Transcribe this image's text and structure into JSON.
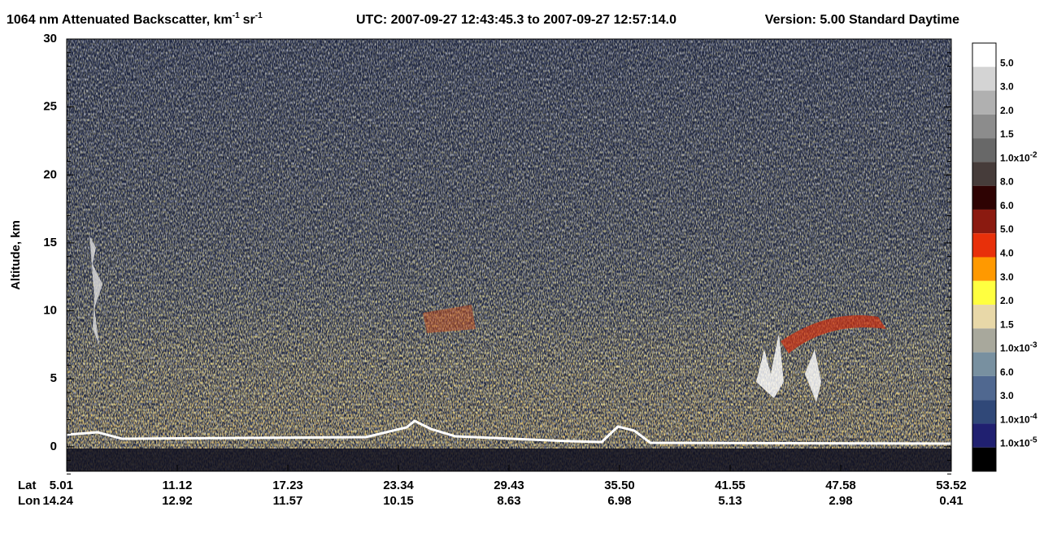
{
  "chart_data": {
    "type": "image",
    "title": {
      "main": "1064 nm Attenuated Backscatter, km",
      "exp1": "-1",
      "unit2": "sr",
      "exp2": "-1",
      "utc": "UTC:  2007-09-27 12:43:45.3  to  2007-09-27 12:57:14.0",
      "version": "Version: 5.00  Standard  Daytime"
    },
    "y_label": "Altitude, km",
    "ylim": [
      -1.8,
      30
    ],
    "yticks": [
      0,
      5,
      10,
      15,
      20,
      25,
      30
    ],
    "x_rows": [
      "Lat",
      "Lon"
    ],
    "lat": [
      "5.01",
      "11.12",
      "17.23",
      "23.34",
      "29.43",
      "35.50",
      "41.55",
      "47.58",
      "53.52"
    ],
    "lon": [
      "14.24",
      "12.92",
      "11.57",
      "10.15",
      "8.63",
      "6.98",
      "5.13",
      "2.98",
      "0.41"
    ],
    "colorbar": {
      "colors": [
        "#ffffff",
        "#d4d4d4",
        "#b0b0b0",
        "#8c8c8c",
        "#686868",
        "#463c3a",
        "#2e0303",
        "#8b1a10",
        "#e8300a",
        "#ff9900",
        "#ffff40",
        "#e8d8a8",
        "#a8a89c",
        "#7890a0",
        "#506890",
        "#304878",
        "#202070",
        "#000000"
      ],
      "labels": [
        {
          "text": "5.0"
        },
        {
          "text": "3.0"
        },
        {
          "text": "2.0"
        },
        {
          "text": "1.5"
        },
        {
          "text": "1.0x10",
          "exp": "-2"
        },
        {
          "text": "8.0"
        },
        {
          "text": "6.0"
        },
        {
          "text": "5.0"
        },
        {
          "text": "4.0"
        },
        {
          "text": "3.0"
        },
        {
          "text": "2.0"
        },
        {
          "text": "1.5"
        },
        {
          "text": "1.0x10",
          "exp": "-3"
        },
        {
          "text": "6.0"
        },
        {
          "text": "3.0"
        },
        {
          "text": "1.0x10",
          "exp": "-4"
        },
        {
          "text": "1.0x10",
          "exp": "-5"
        }
      ]
    }
  }
}
